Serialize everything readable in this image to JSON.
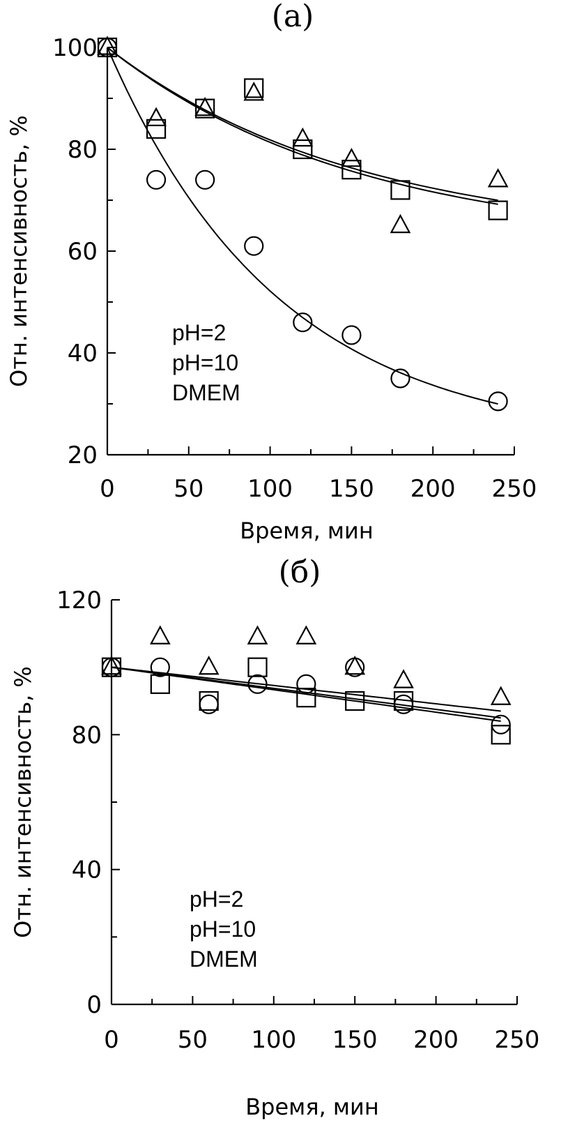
{
  "chart_data": [
    {
      "type": "scatter",
      "panel": "(a)",
      "title": "(a)",
      "xlabel": "Время, мин",
      "ylabel": "Отн. интенсивность, %",
      "xlim": [
        0,
        250
      ],
      "ylim": [
        20,
        100
      ],
      "xticks": [
        0,
        50,
        100,
        150,
        200,
        250
      ],
      "yticks": [
        20,
        40,
        60,
        80,
        100
      ],
      "legend": [
        "pH=2",
        "pH=10",
        "DMEM"
      ],
      "series": [
        {
          "name": "pH=2",
          "marker": "triangle",
          "x": [
            0,
            30,
            60,
            90,
            120,
            150,
            180,
            240
          ],
          "y": [
            100,
            86,
            88,
            91,
            82,
            78,
            65,
            74
          ]
        },
        {
          "name": "pH=10",
          "marker": "square",
          "x": [
            0,
            30,
            60,
            90,
            120,
            150,
            180,
            240
          ],
          "y": [
            100,
            84,
            88,
            92,
            80,
            76,
            72,
            68
          ]
        },
        {
          "name": "DMEM",
          "marker": "circle",
          "x": [
            0,
            30,
            60,
            90,
            120,
            150,
            180,
            240
          ],
          "y": [
            100,
            74,
            74,
            61,
            46,
            43.5,
            35,
            30.5
          ]
        }
      ],
      "fits": [
        {
          "series": "pH=2",
          "c": 62,
          "a": 38,
          "k": 0.0065
        },
        {
          "series": "pH=10",
          "c": 61,
          "a": 39,
          "k": 0.0065
        },
        {
          "series": "DMEM",
          "c": 22,
          "a": 78,
          "k": 0.0095
        }
      ]
    },
    {
      "type": "scatter",
      "panel": "(б)",
      "title": "(б)",
      "xlabel": "Время, мин",
      "ylabel": "Отн. интенсивность, %",
      "xlim": [
        0,
        250
      ],
      "ylim": [
        0,
        120
      ],
      "xticks": [
        0,
        50,
        100,
        150,
        200,
        250
      ],
      "yticks": [
        0,
        40,
        80,
        120
      ],
      "legend": [
        "pH=2",
        "pH=10",
        "DMEM"
      ],
      "series": [
        {
          "name": "pH=2",
          "marker": "triangle",
          "x": [
            0,
            30,
            60,
            90,
            120,
            150,
            180,
            240
          ],
          "y": [
            100,
            109,
            100,
            109,
            109,
            100,
            96,
            91
          ]
        },
        {
          "name": "pH=10",
          "marker": "square",
          "x": [
            0,
            30,
            60,
            90,
            120,
            150,
            180,
            240
          ],
          "y": [
            100,
            95,
            90,
            100,
            91,
            90,
            90,
            80
          ]
        },
        {
          "name": "DMEM",
          "marker": "circle",
          "x": [
            0,
            30,
            60,
            90,
            120,
            150,
            180,
            240
          ],
          "y": [
            100,
            100,
            89,
            95,
            95,
            100,
            89,
            83
          ]
        }
      ],
      "fits": [
        {
          "series": "pH=2",
          "start": 100,
          "end": 87
        },
        {
          "series": "pH=10",
          "start": 100,
          "end": 84
        },
        {
          "series": "DMEM",
          "start": 100,
          "end": 85
        }
      ]
    }
  ]
}
